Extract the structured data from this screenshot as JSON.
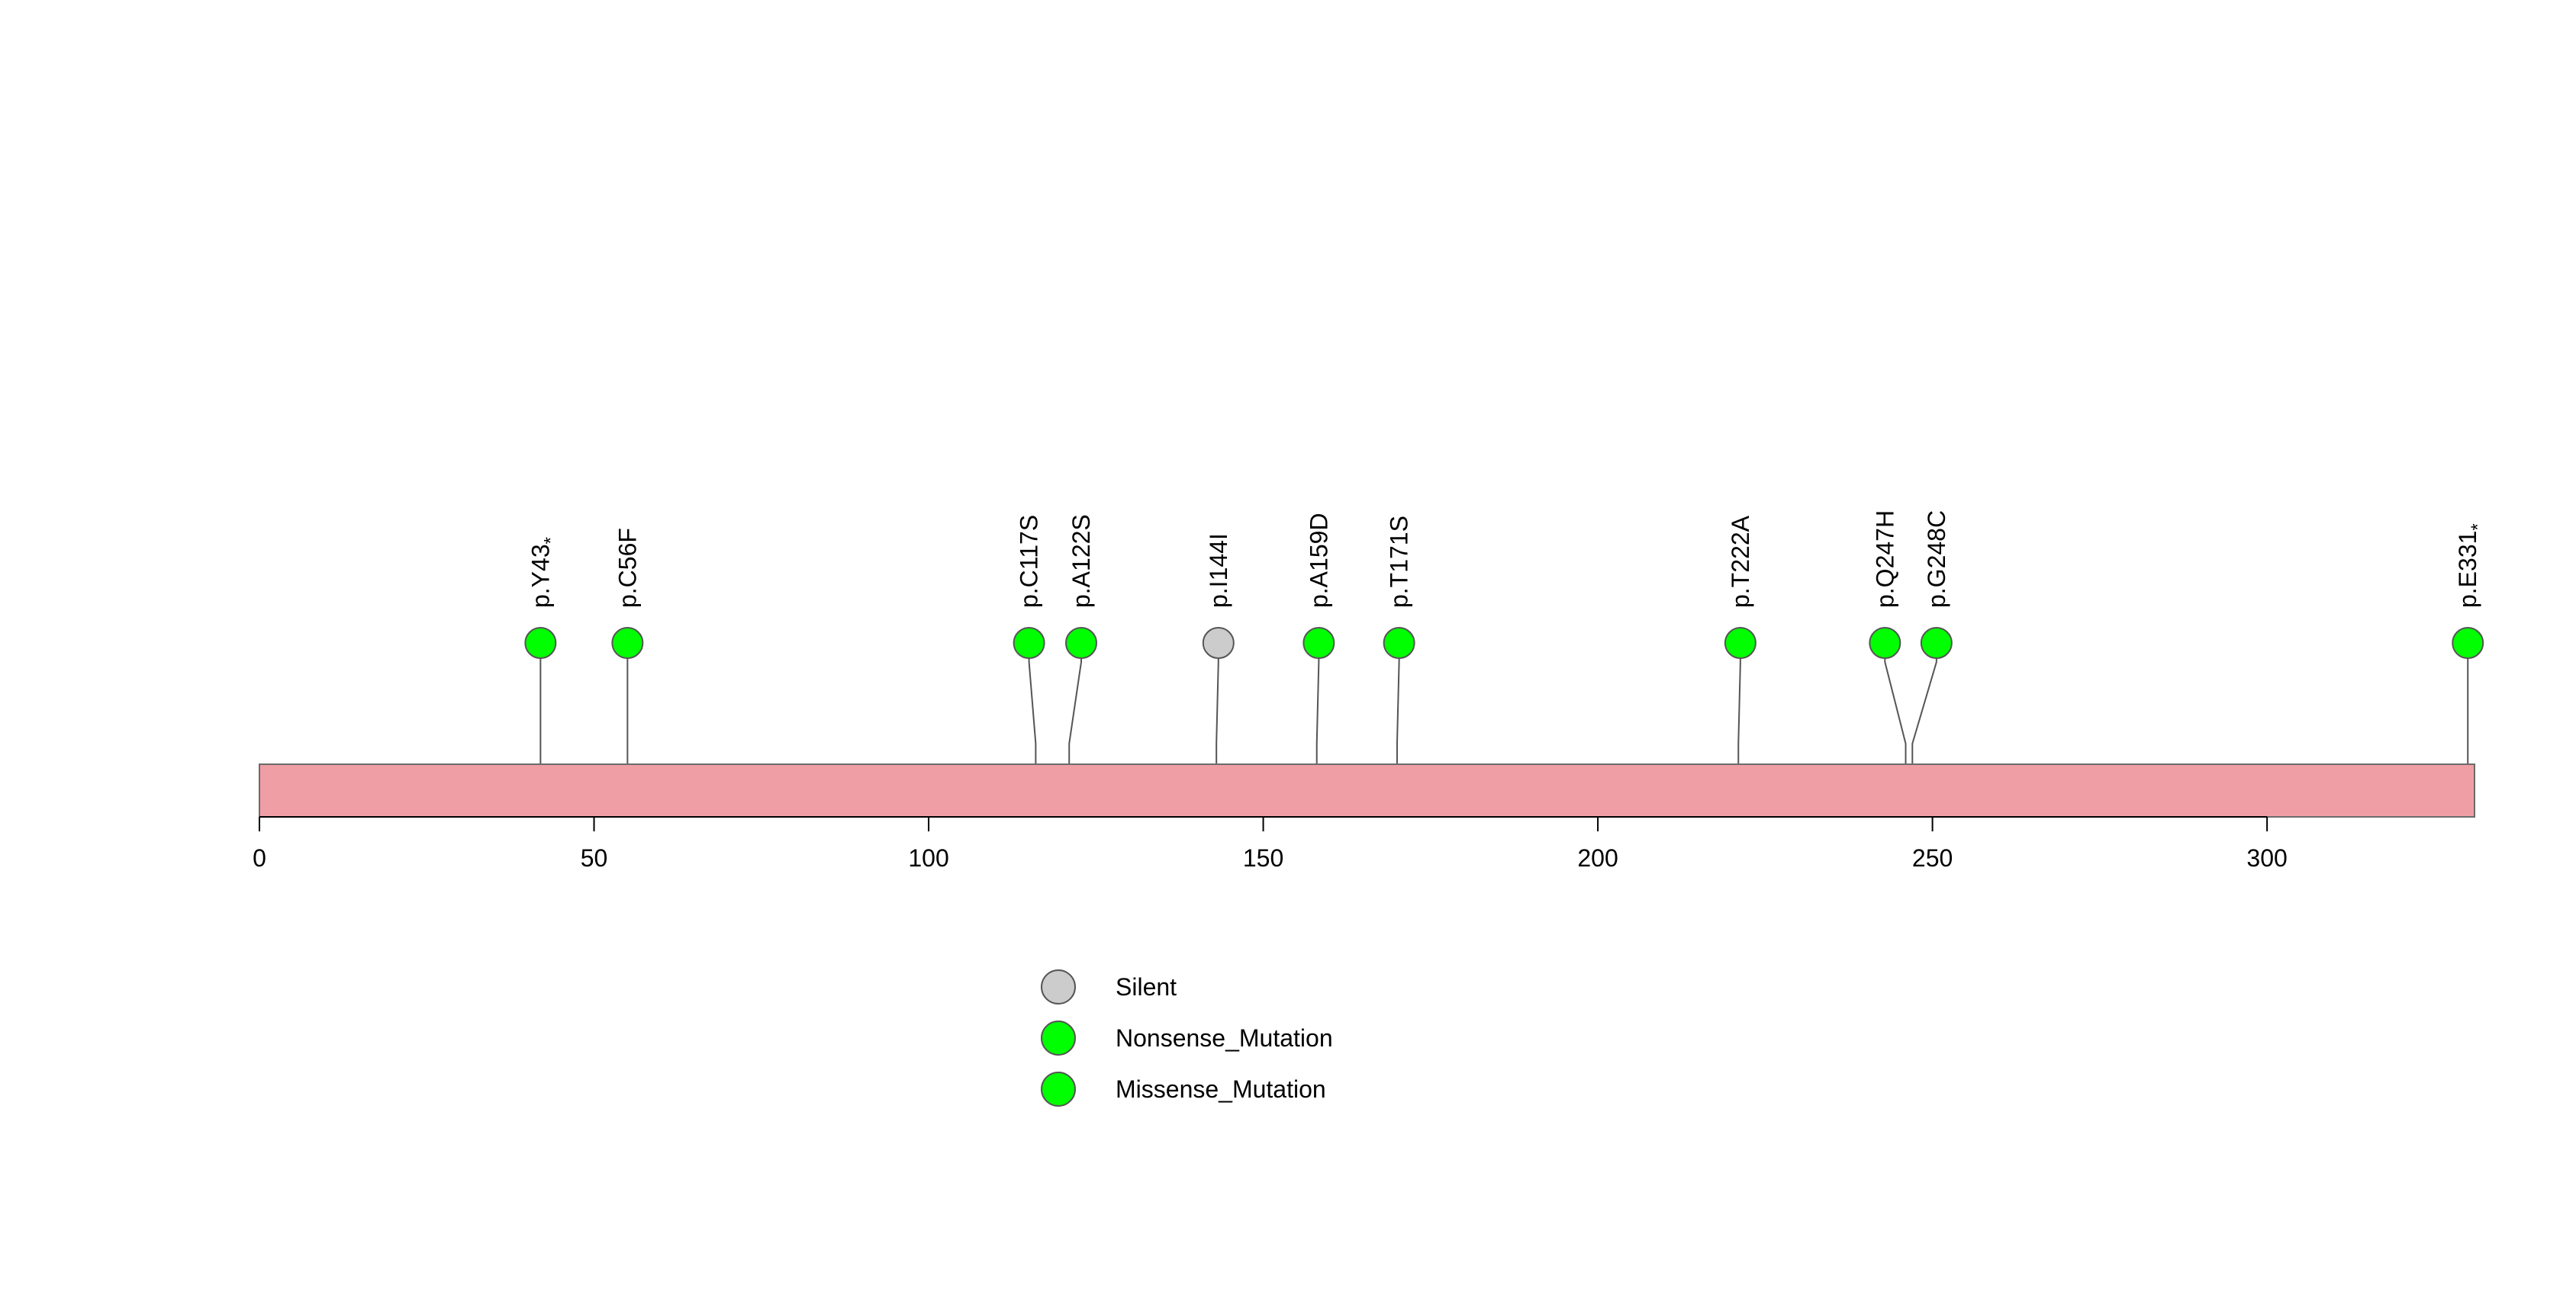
{
  "chart_data": {
    "type": "lollipop",
    "protein_length": 331,
    "xlim": [
      0,
      331
    ],
    "x_ticks": [
      0,
      50,
      100,
      150,
      200,
      250,
      300
    ],
    "x_tick_labels": [
      "0",
      "50",
      "100",
      "150",
      "200",
      "250",
      "300"
    ],
    "domain_color": "#f09ea5",
    "mutations": [
      {
        "label": "p.Y43",
        "marker": "*",
        "position": 42,
        "display_position": 42,
        "type": "Nonsense_Mutation"
      },
      {
        "label": "p.C56F",
        "marker": "",
        "position": 55,
        "display_position": 55,
        "type": "Missense_Mutation"
      },
      {
        "label": "p.C117S",
        "marker": "",
        "position": 116,
        "display_position": 115,
        "type": "Missense_Mutation"
      },
      {
        "label": "p.A122S",
        "marker": "",
        "position": 121,
        "display_position": 122.8,
        "type": "Missense_Mutation"
      },
      {
        "label": "p.I144I",
        "marker": "",
        "position": 143,
        "display_position": 143.3,
        "type": "Silent"
      },
      {
        "label": "p.A159D",
        "marker": "",
        "position": 158,
        "display_position": 158.3,
        "type": "Missense_Mutation"
      },
      {
        "label": "p.T171S",
        "marker": "",
        "position": 170,
        "display_position": 170.3,
        "type": "Missense_Mutation"
      },
      {
        "label": "p.T222A",
        "marker": "",
        "position": 221,
        "display_position": 221.3,
        "type": "Missense_Mutation"
      },
      {
        "label": "p.Q247H",
        "marker": "",
        "position": 246,
        "display_position": 242.9,
        "type": "Missense_Mutation"
      },
      {
        "label": "p.G248C",
        "marker": "",
        "position": 247,
        "display_position": 250.6,
        "type": "Missense_Mutation"
      },
      {
        "label": "p.E331",
        "marker": "*",
        "position": 330,
        "display_position": 330,
        "type": "Nonsense_Mutation"
      }
    ],
    "legend": [
      {
        "label": "Silent",
        "color": "#cccccc"
      },
      {
        "label": "Nonsense_Mutation",
        "color": "#00ff00"
      },
      {
        "label": "Missense_Mutation",
        "color": "#00ff00"
      }
    ],
    "type_colors": {
      "Silent": "#cccccc",
      "Nonsense_Mutation": "#00ff00",
      "Missense_Mutation": "#00ff00"
    }
  }
}
